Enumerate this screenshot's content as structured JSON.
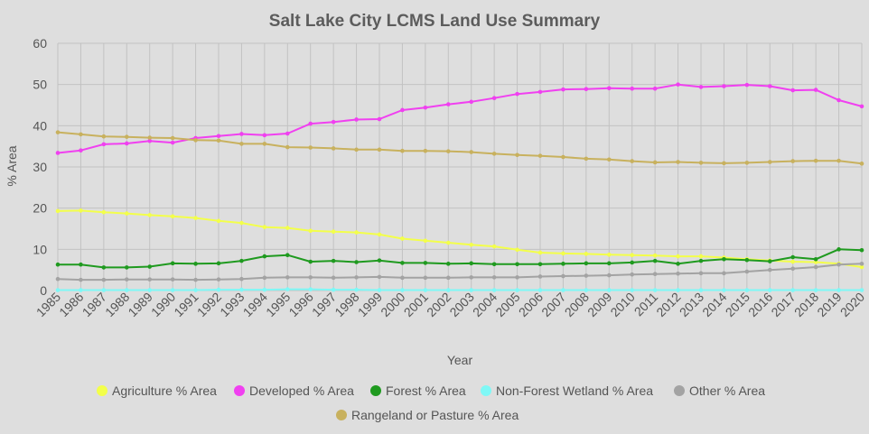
{
  "chart_data": {
    "type": "line",
    "title": "Salt Lake City LCMS Land Use Summary",
    "xlabel": "Year",
    "ylabel": "% Area",
    "ylim": [
      0,
      60
    ],
    "yticks": [
      0,
      10,
      20,
      30,
      40,
      50,
      60
    ],
    "grid": true,
    "legend_position": "bottom",
    "x": [
      1985,
      1986,
      1987,
      1988,
      1989,
      1990,
      1991,
      1992,
      1993,
      1994,
      1995,
      1996,
      1997,
      1998,
      1999,
      2000,
      2001,
      2002,
      2003,
      2004,
      2005,
      2006,
      2007,
      2008,
      2009,
      2010,
      2011,
      2012,
      2013,
      2014,
      2015,
      2016,
      2017,
      2018,
      2019,
      2020
    ],
    "series": [
      {
        "name": "Agriculture % Area",
        "color": "#f3ff4a",
        "values": [
          19.3,
          19.4,
          19.0,
          18.7,
          18.3,
          18.0,
          17.6,
          16.9,
          16.4,
          15.4,
          15.2,
          14.5,
          14.3,
          14.1,
          13.6,
          12.6,
          12.1,
          11.6,
          11.1,
          10.7,
          9.9,
          9.2,
          9.0,
          8.9,
          8.7,
          8.6,
          8.5,
          8.3,
          8.3,
          8.0,
          7.6,
          7.3,
          7.0,
          6.9,
          6.5,
          5.7
        ]
      },
      {
        "name": "Developed % Area",
        "color": "#f040f0",
        "values": [
          33.4,
          34.0,
          35.5,
          35.7,
          36.3,
          35.9,
          37.0,
          37.5,
          38.0,
          37.7,
          38.1,
          40.5,
          40.9,
          41.5,
          41.6,
          43.8,
          44.4,
          45.2,
          45.8,
          46.7,
          47.7,
          48.2,
          48.8,
          48.9,
          49.1,
          49.0,
          49.0,
          50.0,
          49.4,
          49.6,
          49.9,
          49.6,
          48.6,
          48.7,
          46.2,
          44.7
        ]
      },
      {
        "name": "Forest % Area",
        "color": "#1f9a1f",
        "values": [
          6.3,
          6.3,
          5.6,
          5.6,
          5.8,
          6.6,
          6.5,
          6.6,
          7.2,
          8.3,
          8.6,
          7.0,
          7.2,
          6.9,
          7.3,
          6.7,
          6.7,
          6.5,
          6.6,
          6.4,
          6.4,
          6.4,
          6.5,
          6.6,
          6.6,
          6.8,
          7.2,
          6.5,
          7.2,
          7.6,
          7.4,
          7.1,
          8.1,
          7.6,
          10.0,
          9.8
        ]
      },
      {
        "name": "Non-Forest Wetland % Area",
        "color": "#7ff8f6",
        "values": [
          0.1,
          0.1,
          0.1,
          0.1,
          0.1,
          0.1,
          0.1,
          0.2,
          0.2,
          0.2,
          0.3,
          0.3,
          0.2,
          0.2,
          0.1,
          0.1,
          0.1,
          0.1,
          0.1,
          0.1,
          0.1,
          0.1,
          0.1,
          0.1,
          0.1,
          0.1,
          0.1,
          0.1,
          0.1,
          0.1,
          0.1,
          0.1,
          0.1,
          0.1,
          0.1,
          0.1
        ]
      },
      {
        "name": "Other % Area",
        "color": "#a3a3a3",
        "values": [
          2.8,
          2.6,
          2.6,
          2.7,
          2.7,
          2.7,
          2.6,
          2.7,
          2.8,
          3.1,
          3.2,
          3.2,
          3.1,
          3.2,
          3.3,
          3.1,
          3.1,
          3.1,
          3.2,
          3.2,
          3.2,
          3.4,
          3.5,
          3.6,
          3.7,
          3.9,
          4.0,
          4.1,
          4.2,
          4.2,
          4.6,
          5.0,
          5.3,
          5.7,
          6.3,
          6.5
        ]
      },
      {
        "name": "Rangeland or Pasture % Area",
        "color": "#c8b15e",
        "values": [
          38.4,
          37.9,
          37.4,
          37.3,
          37.1,
          37.0,
          36.5,
          36.4,
          35.6,
          35.6,
          34.8,
          34.7,
          34.5,
          34.2,
          34.2,
          33.9,
          33.9,
          33.8,
          33.6,
          33.2,
          32.9,
          32.7,
          32.4,
          32.0,
          31.8,
          31.4,
          31.1,
          31.2,
          31.0,
          30.9,
          31.0,
          31.2,
          31.4,
          31.5,
          31.5,
          30.8
        ]
      }
    ]
  }
}
